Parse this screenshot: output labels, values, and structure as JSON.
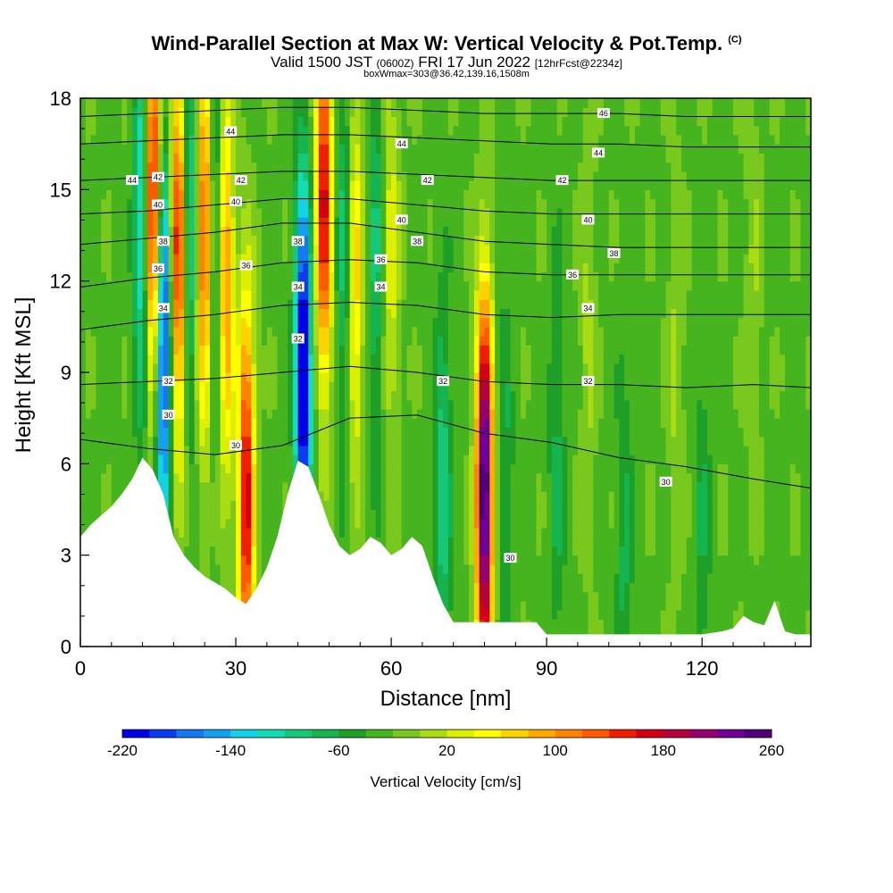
{
  "header": {
    "title": "Wind-Parallel Section at Max W: Vertical Velocity & Pot.Temp.",
    "title_tag": "(C)",
    "valid_prefix": "Valid 1500 JST",
    "valid_utc": "(0600Z)",
    "valid_date": "FRI 17 Jun 2022",
    "forecast": "[12hrFcst@2234z]",
    "box_info": "boxWmax=303@36.42,139.16,1508m"
  },
  "chart_data": {
    "type": "heatmap",
    "xlabel": "Distance [nm]",
    "ylabel": "Height [Kft MSL]",
    "xlim": [
      0,
      141
    ],
    "ylim": [
      0,
      18
    ],
    "x_ticks": [
      "0",
      "30",
      "60",
      "90",
      "120"
    ],
    "x_tick_values": [
      0,
      30,
      60,
      90,
      120
    ],
    "y_ticks": [
      "0",
      "3",
      "6",
      "9",
      "12",
      "15",
      "18"
    ],
    "y_tick_values": [
      0,
      3,
      6,
      9,
      12,
      15,
      18
    ],
    "colorbar": {
      "label": "Vertical Velocity [cm/s]",
      "min": -220,
      "max": 260,
      "step": 20,
      "tick_labels": [
        "-220",
        "-140",
        "-60",
        "20",
        "100",
        "180",
        "260"
      ],
      "tick_values": [
        -220,
        -140,
        -60,
        20,
        100,
        180,
        260
      ],
      "colors": [
        "#0000e6",
        "#0a3cf0",
        "#1478f0",
        "#14a0f0",
        "#14d2e6",
        "#14dcb4",
        "#14c878",
        "#14b450",
        "#1ea028",
        "#46b41e",
        "#78c81e",
        "#aadc14",
        "#dcf000",
        "#ffff00",
        "#ffd200",
        "#ffaa00",
        "#ff8200",
        "#ff5a00",
        "#f01e00",
        "#d20014",
        "#b4003c",
        "#96006e",
        "#6e0096",
        "#500078"
      ]
    },
    "terrain_profile": {
      "x": [
        0,
        2,
        4,
        6,
        8,
        10,
        12,
        14,
        16,
        18,
        20,
        22,
        24,
        26,
        28,
        30,
        32,
        34,
        36,
        38,
        40,
        42,
        44,
        46,
        48,
        50,
        52,
        54,
        56,
        58,
        60,
        62,
        64,
        66,
        68,
        70,
        72,
        74,
        76,
        78,
        80,
        84,
        88,
        90,
        95,
        100,
        105,
        110,
        115,
        120,
        124,
        126,
        128,
        130,
        132,
        134,
        136,
        138,
        141
      ],
      "y": [
        3.6,
        4.0,
        4.3,
        4.6,
        5.0,
        5.5,
        6.2,
        5.8,
        5.0,
        3.6,
        3.0,
        2.6,
        2.3,
        2.1,
        1.9,
        1.6,
        1.4,
        1.9,
        2.6,
        3.6,
        5.0,
        6.1,
        5.9,
        5.0,
        4.0,
        3.3,
        3.0,
        3.2,
        3.6,
        3.4,
        3.0,
        3.2,
        3.6,
        3.3,
        2.3,
        1.4,
        0.8,
        0.8,
        0.8,
        0.8,
        0.8,
        0.8,
        0.8,
        0.4,
        0.4,
        0.4,
        0.4,
        0.4,
        0.4,
        0.4,
        0.5,
        0.6,
        1.0,
        0.8,
        0.7,
        1.5,
        0.5,
        0.4,
        0.4
      ]
    },
    "updraft_cores": [
      {
        "x": 14,
        "y": 14.5,
        "w": 230
      },
      {
        "x": 19,
        "y": 13.0,
        "w": 200
      },
      {
        "x": 24,
        "y": 13.5,
        "w": 170
      },
      {
        "x": 28,
        "y": 12.0,
        "w": 140
      },
      {
        "x": 32,
        "y": 5.0,
        "w": 200
      },
      {
        "x": 47,
        "y": 15.0,
        "w": 200
      },
      {
        "x": 53,
        "y": 12.0,
        "w": 100
      },
      {
        "x": 60,
        "y": 13.0,
        "w": 60
      },
      {
        "x": 78,
        "y": 5.0,
        "w": 303
      },
      {
        "x": 98,
        "y": 10.0,
        "w": 30
      },
      {
        "x": 115,
        "y": 9.0,
        "w": 30
      },
      {
        "x": 130,
        "y": 12.0,
        "w": 25
      }
    ],
    "downdraft_cores": [
      {
        "x": 12,
        "y": 14.0,
        "w": -120
      },
      {
        "x": 16,
        "y": 10.0,
        "w": -200
      },
      {
        "x": 21,
        "y": 14.0,
        "w": -110
      },
      {
        "x": 26,
        "y": 13.0,
        "w": -90
      },
      {
        "x": 43,
        "y": 9.0,
        "w": -220
      },
      {
        "x": 51,
        "y": 13.0,
        "w": -70
      },
      {
        "x": 57,
        "y": 13.0,
        "w": -60
      },
      {
        "x": 70,
        "y": 5.0,
        "w": -70
      },
      {
        "x": 82,
        "y": 5.0,
        "w": -40
      },
      {
        "x": 92,
        "y": 6.0,
        "w": -40
      },
      {
        "x": 105,
        "y": 3.0,
        "w": -40
      },
      {
        "x": 120,
        "y": 4.0,
        "w": -35
      }
    ],
    "theta_isotherms": [
      {
        "value": 30,
        "y": [
          6.8,
          6.5,
          6.3,
          6.6,
          7.5,
          7.6,
          7.0,
          6.7,
          6.2,
          5.9,
          5.5,
          5.2
        ]
      },
      {
        "value": 32,
        "y": [
          8.6,
          8.7,
          8.8,
          9.0,
          9.2,
          9.0,
          8.7,
          8.6,
          8.6,
          8.5,
          8.6,
          8.5
        ]
      },
      {
        "value": 34,
        "y": [
          10.4,
          10.7,
          10.9,
          11.2,
          11.3,
          11.2,
          10.9,
          10.8,
          10.9,
          10.9,
          10.9,
          10.9
        ]
      },
      {
        "value": 36,
        "y": [
          11.8,
          12.1,
          12.3,
          12.6,
          12.7,
          12.6,
          12.3,
          12.2,
          12.2,
          12.2,
          12.2,
          12.2
        ]
      },
      {
        "value": 38,
        "y": [
          13.2,
          13.4,
          13.6,
          13.9,
          13.9,
          13.6,
          13.3,
          13.2,
          13.1,
          13.1,
          13.1,
          13.1
        ]
      },
      {
        "value": 40,
        "y": [
          14.2,
          14.3,
          14.5,
          14.7,
          14.7,
          14.5,
          14.3,
          14.2,
          14.2,
          14.2,
          14.2,
          14.2
        ]
      },
      {
        "value": 42,
        "y": [
          15.3,
          15.4,
          15.5,
          15.6,
          15.6,
          15.5,
          15.4,
          15.3,
          15.3,
          15.3,
          15.3,
          15.3
        ]
      },
      {
        "value": 44,
        "y": [
          16.5,
          16.6,
          16.7,
          16.8,
          16.8,
          16.7,
          16.6,
          16.5,
          16.5,
          16.4,
          16.4,
          16.4
        ]
      },
      {
        "value": 46,
        "y": [
          17.4,
          17.5,
          17.6,
          17.7,
          17.7,
          17.6,
          17.5,
          17.5,
          17.5,
          17.4,
          17.4,
          17.4
        ]
      }
    ],
    "theta_x": [
      0,
      13,
      26,
      39,
      52,
      65,
      78,
      91,
      104,
      117,
      130,
      141
    ],
    "contour_labels": [
      {
        "text": "30",
        "x": 30,
        "y": 6.6
      },
      {
        "text": "30",
        "x": 83,
        "y": 2.9
      },
      {
        "text": "30",
        "x": 113,
        "y": 5.4
      },
      {
        "text": "30",
        "x": 17,
        "y": 7.6
      },
      {
        "text": "32",
        "x": 17,
        "y": 8.7
      },
      {
        "text": "32",
        "x": 70,
        "y": 8.7
      },
      {
        "text": "32",
        "x": 98,
        "y": 8.7
      },
      {
        "text": "32",
        "x": 42,
        "y": 10.1
      },
      {
        "text": "34",
        "x": 16,
        "y": 11.1
      },
      {
        "text": "34",
        "x": 42,
        "y": 11.8
      },
      {
        "text": "34",
        "x": 58,
        "y": 11.8
      },
      {
        "text": "34",
        "x": 98,
        "y": 11.1
      },
      {
        "text": "36",
        "x": 15,
        "y": 12.4
      },
      {
        "text": "36",
        "x": 32,
        "y": 12.5
      },
      {
        "text": "36",
        "x": 58,
        "y": 12.7
      },
      {
        "text": "36",
        "x": 95,
        "y": 12.2
      },
      {
        "text": "38",
        "x": 16,
        "y": 13.3
      },
      {
        "text": "38",
        "x": 42,
        "y": 13.3
      },
      {
        "text": "38",
        "x": 65,
        "y": 13.3
      },
      {
        "text": "38",
        "x": 103,
        "y": 12.9
      },
      {
        "text": "40",
        "x": 15,
        "y": 14.5
      },
      {
        "text": "40",
        "x": 30,
        "y": 14.6
      },
      {
        "text": "40",
        "x": 62,
        "y": 14.0
      },
      {
        "text": "40",
        "x": 98,
        "y": 14.0
      },
      {
        "text": "42",
        "x": 15,
        "y": 15.4
      },
      {
        "text": "42",
        "x": 31,
        "y": 15.3
      },
      {
        "text": "42",
        "x": 67,
        "y": 15.3
      },
      {
        "text": "42",
        "x": 93,
        "y": 15.3
      },
      {
        "text": "44",
        "x": 10,
        "y": 15.3
      },
      {
        "text": "44",
        "x": 29,
        "y": 16.9
      },
      {
        "text": "44",
        "x": 62,
        "y": 16.5
      },
      {
        "text": "44",
        "x": 100,
        "y": 16.2
      },
      {
        "text": "46",
        "x": 101,
        "y": 17.5
      }
    ]
  }
}
